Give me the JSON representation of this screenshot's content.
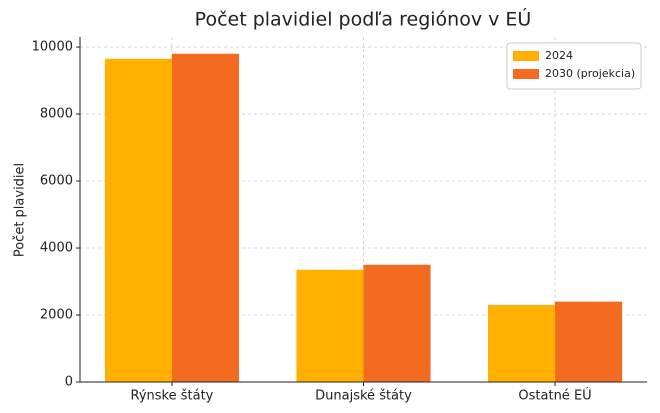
{
  "chart_data": {
    "type": "grouped-bar",
    "title": "Počet plavidiel podľa regiónov v EÚ",
    "y_label": "Počet plavidiel",
    "categories": [
      "Rýnske štáty",
      "Dunajské štáty",
      "Ostatné EÚ"
    ],
    "series": [
      {
        "name": "2024",
        "color": "#ffb000",
        "values": [
          9650,
          3350,
          2300
        ]
      },
      {
        "name": "2030 (projekcia)",
        "color": "#f26b21",
        "values": [
          9800,
          3500,
          2400
        ]
      }
    ],
    "ylim": [
      0,
      10300
    ],
    "yticks": [
      0,
      2000,
      4000,
      6000,
      8000,
      10000
    ],
    "grid": true,
    "legend": "upper-right"
  }
}
